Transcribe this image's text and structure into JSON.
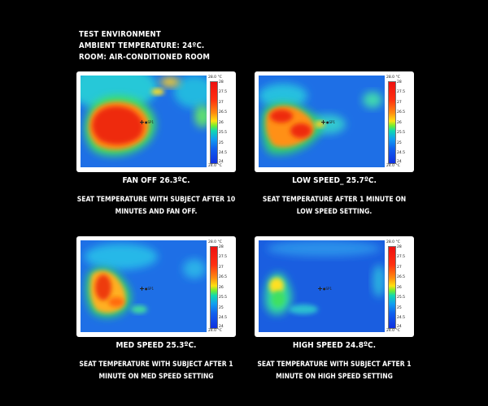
{
  "header": {
    "line1": "TEST ENVIRONMENT",
    "line2": "AMBIENT TEMPERATURE: 24ºC.",
    "line3": "ROOM: AIR-CONDITIONED ROOM"
  },
  "scale": {
    "top": "28.0 °C",
    "bottom": "24.0 °C",
    "ticks": [
      "28",
      "27.5",
      "27",
      "26.5",
      "26",
      "25.5",
      "25",
      "24.5",
      "24"
    ]
  },
  "panels": [
    {
      "title": "FAN OFF 26.3ºC.",
      "desc": "SEAT TEMPERATURE WITH SUBJECT AFTER 10 MINUTES AND FAN OFF."
    },
    {
      "title": "LOW SPEED_ 25.7ºC.",
      "desc": "SEAT TEMPERATURE AFTER 1 MINUTE ON LOW SPEED SETTING."
    },
    {
      "title": "MED SPEED 25.3ºC.",
      "desc": "SEAT TEMPERATURE WITH SUBJECT AFTER 1 MINUTE ON MED SPEED SETTING"
    },
    {
      "title": "HIGH SPEED 24.8ºC.",
      "desc": "SEAT TEMPERATURE WITH SUBJECT AFTER 1 MINUTE ON HIGH SPEED SETTING"
    }
  ]
}
